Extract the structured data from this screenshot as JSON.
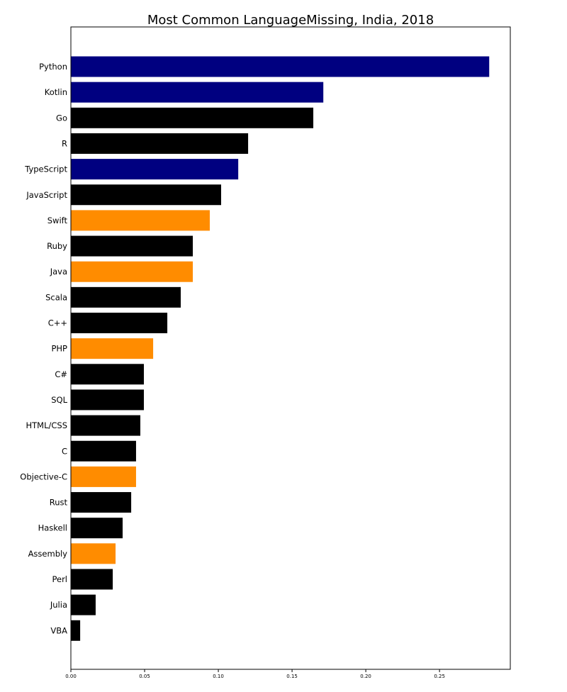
{
  "chart_data": {
    "type": "bar",
    "orientation": "horizontal",
    "title": "Most Common LanguageMissing, India, 2018",
    "xlabel": "",
    "ylabel": "",
    "xlim": [
      0,
      0.298
    ],
    "xticks": [
      "0.00",
      "0.05",
      "0.10",
      "0.15",
      "0.20",
      "0.25"
    ],
    "grid": false,
    "colors": {
      "navy": "#000080",
      "black": "#000000",
      "orange": "#ff8c00"
    },
    "categories": [
      "Python",
      "Kotlin",
      "Go",
      "R",
      "TypeScript",
      "JavaScript",
      "Swift",
      "Ruby",
      "Java",
      "Scala",
      "C++",
      "PHP",
      "C#",
      "SQL",
      "HTML/CSS",
      "C",
      "Objective-C",
      "Rust",
      "Haskell",
      "Assembly",
      "Perl",
      "Julia",
      "VBA"
    ],
    "values": [
      0.2837,
      0.1712,
      0.1644,
      0.1202,
      0.1135,
      0.1019,
      0.0942,
      0.0827,
      0.0827,
      0.0745,
      0.0654,
      0.0558,
      0.0495,
      0.0495,
      0.0471,
      0.0442,
      0.0442,
      0.0409,
      0.0351,
      0.0303,
      0.0284,
      0.0168,
      0.0063
    ],
    "bar_colors": [
      "navy",
      "navy",
      "black",
      "black",
      "navy",
      "black",
      "orange",
      "black",
      "orange",
      "black",
      "black",
      "orange",
      "black",
      "black",
      "black",
      "black",
      "orange",
      "black",
      "black",
      "orange",
      "black",
      "black",
      "black"
    ]
  }
}
